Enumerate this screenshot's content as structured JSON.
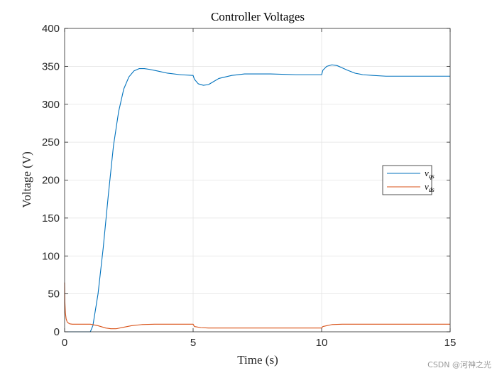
{
  "chart_data": {
    "type": "line",
    "title": "Controller Voltages",
    "xlabel": "Time (s)",
    "ylabel": "Voltage (V)",
    "xlim": [
      0,
      15
    ],
    "ylim": [
      0,
      400
    ],
    "xticks": [
      0,
      5,
      10,
      15
    ],
    "yticks": [
      0,
      50,
      100,
      150,
      200,
      250,
      300,
      350,
      400
    ],
    "grid": true,
    "legend_position": "right",
    "series": [
      {
        "name": "v_qs",
        "label_main": "v",
        "label_sub": "qs",
        "color": "#0072BD",
        "x": [
          0,
          1.0,
          1.1,
          1.3,
          1.5,
          1.7,
          1.9,
          2.1,
          2.3,
          2.5,
          2.7,
          2.9,
          3.1,
          3.3,
          3.6,
          4.0,
          4.5,
          5.0,
          5.05,
          5.2,
          5.4,
          5.6,
          5.8,
          6.0,
          6.5,
          7.0,
          7.5,
          8.0,
          9.0,
          10.0,
          10.05,
          10.2,
          10.4,
          10.6,
          10.8,
          11.0,
          11.3,
          11.6,
          12.0,
          12.5,
          13.0,
          14.0,
          15.0
        ],
        "y": [
          0,
          0,
          8,
          50,
          110,
          180,
          245,
          290,
          320,
          336,
          344,
          347,
          347,
          346,
          344,
          341,
          339,
          338,
          333,
          327,
          325,
          326,
          330,
          334,
          338,
          340,
          340,
          340,
          339,
          339,
          345,
          350,
          352,
          351,
          348,
          345,
          341,
          339,
          338,
          337,
          337,
          337,
          337
        ]
      },
      {
        "name": "v_ds",
        "label_main": "v",
        "label_sub": "ds",
        "color": "#D95319",
        "x": [
          0,
          0.01,
          0.03,
          0.06,
          0.1,
          0.15,
          0.2,
          0.3,
          0.5,
          0.8,
          1.0,
          1.3,
          1.6,
          1.8,
          2.0,
          2.3,
          2.6,
          3.0,
          3.5,
          4.0,
          5.0,
          5.05,
          5.3,
          5.6,
          6.0,
          7.0,
          8.0,
          9.0,
          10.0,
          10.05,
          10.4,
          10.8,
          11.5,
          12.0,
          13.0,
          14.0,
          15.0
        ],
        "y": [
          65,
          40,
          25,
          17,
          13,
          11.5,
          10.5,
          10,
          10,
          10,
          10,
          8,
          5,
          4,
          4,
          6,
          8,
          9.5,
          10,
          10,
          10,
          7,
          5.5,
          5,
          5,
          5,
          5,
          5,
          5,
          7,
          9.5,
          10,
          10,
          10,
          10,
          10,
          10
        ]
      }
    ]
  },
  "watermark": "CSDN @河神之光"
}
